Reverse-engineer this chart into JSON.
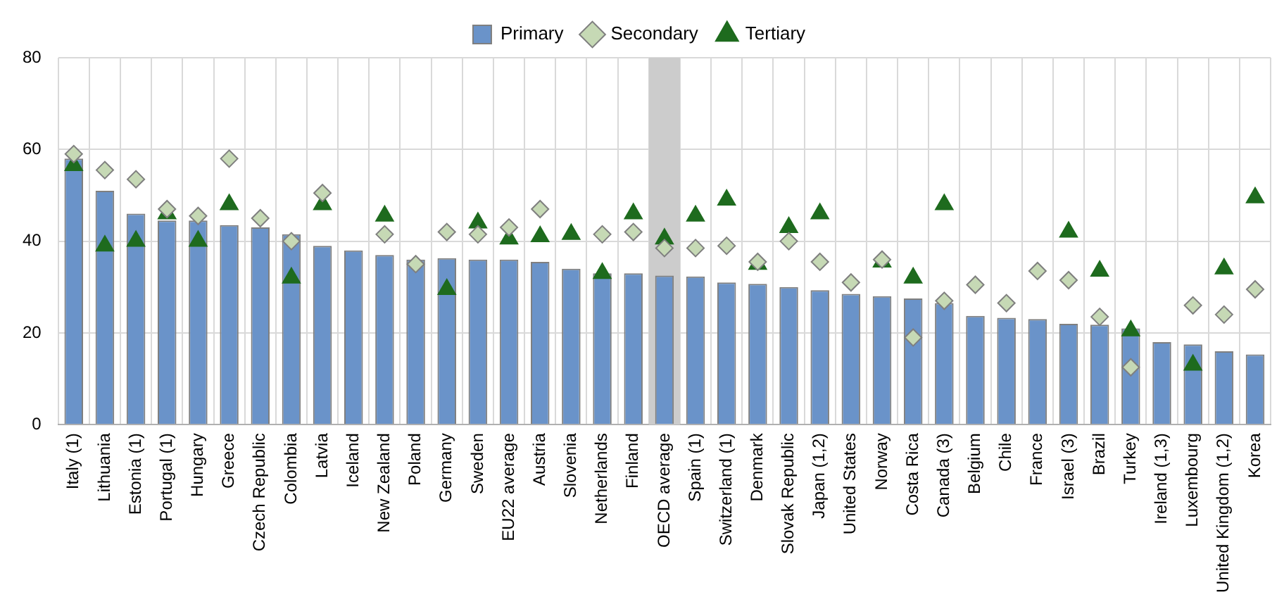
{
  "chart_data": {
    "type": "bar",
    "categories": [
      "Italy (1)",
      "Lithuania",
      "Estonia (1)",
      "Portugal (1)",
      "Hungary",
      "Greece",
      "Czech Republic",
      "Colombia",
      "Latvia",
      "Iceland",
      "New Zealand",
      "Poland",
      "Germany",
      "Sweden",
      "EU22 average",
      "Austria",
      "Slovenia",
      "Netherlands",
      "Finland",
      "OECD average",
      "Spain (1)",
      "Switzerland (1)",
      "Denmark",
      "Slovak Republic",
      "Japan (1,2)",
      "United States",
      "Norway",
      "Costa Rica",
      "Canada (3)",
      "Belgium",
      "Chile",
      "France",
      "Israel (3)",
      "Brazil",
      "Turkey",
      "Ireland (1,3)",
      "Luxembourg",
      "United Kingdom (1,2)",
      "Korea"
    ],
    "series": [
      {
        "name": "Primary",
        "color": "#6a93c9",
        "values": [
          58,
          51,
          46,
          44.5,
          44.5,
          43.5,
          43,
          41.5,
          39,
          38,
          37,
          36,
          36.3,
          36,
          36,
          35.5,
          34,
          33,
          33,
          32.5,
          32.3,
          31,
          30.7,
          30,
          29.3,
          28.5,
          28,
          27.5,
          26.5,
          23.7,
          23.3,
          23,
          22,
          21.8,
          21,
          18,
          17.5,
          16,
          15.3
        ]
      },
      {
        "name": "Secondary",
        "type": "scatter",
        "marker": "diamond",
        "color": "#c6d9b5",
        "values": [
          59,
          55.5,
          53.5,
          47,
          45.5,
          58,
          45,
          40,
          50.5,
          null,
          41.5,
          35,
          42,
          41.5,
          43,
          47,
          null,
          41.5,
          42,
          38.5,
          38.5,
          39,
          35.5,
          40,
          35.5,
          31,
          36,
          19,
          27,
          30.5,
          26.5,
          33.5,
          31.5,
          23.5,
          12.5,
          null,
          26,
          24,
          29.5
        ]
      },
      {
        "name": "Tertiary",
        "type": "scatter",
        "marker": "triangle",
        "color": "#1e6b1e",
        "values": [
          56.5,
          39,
          40,
          46,
          40,
          48,
          null,
          32,
          48,
          null,
          45.5,
          null,
          29.5,
          44,
          40.5,
          41,
          41.5,
          33,
          46,
          40.5,
          45.5,
          49,
          35,
          43,
          46,
          null,
          35.5,
          32,
          48,
          null,
          null,
          null,
          42,
          33.5,
          20.5,
          null,
          13,
          34,
          49.5
        ]
      }
    ],
    "ylim": [
      0,
      80
    ],
    "yticks": [
      0,
      20,
      40,
      60,
      80
    ],
    "grid": true,
    "legend": "top",
    "bands": [
      {
        "axis": "x",
        "from": "OECD average",
        "to": "OECD average",
        "color": "#cccccc"
      }
    ]
  }
}
